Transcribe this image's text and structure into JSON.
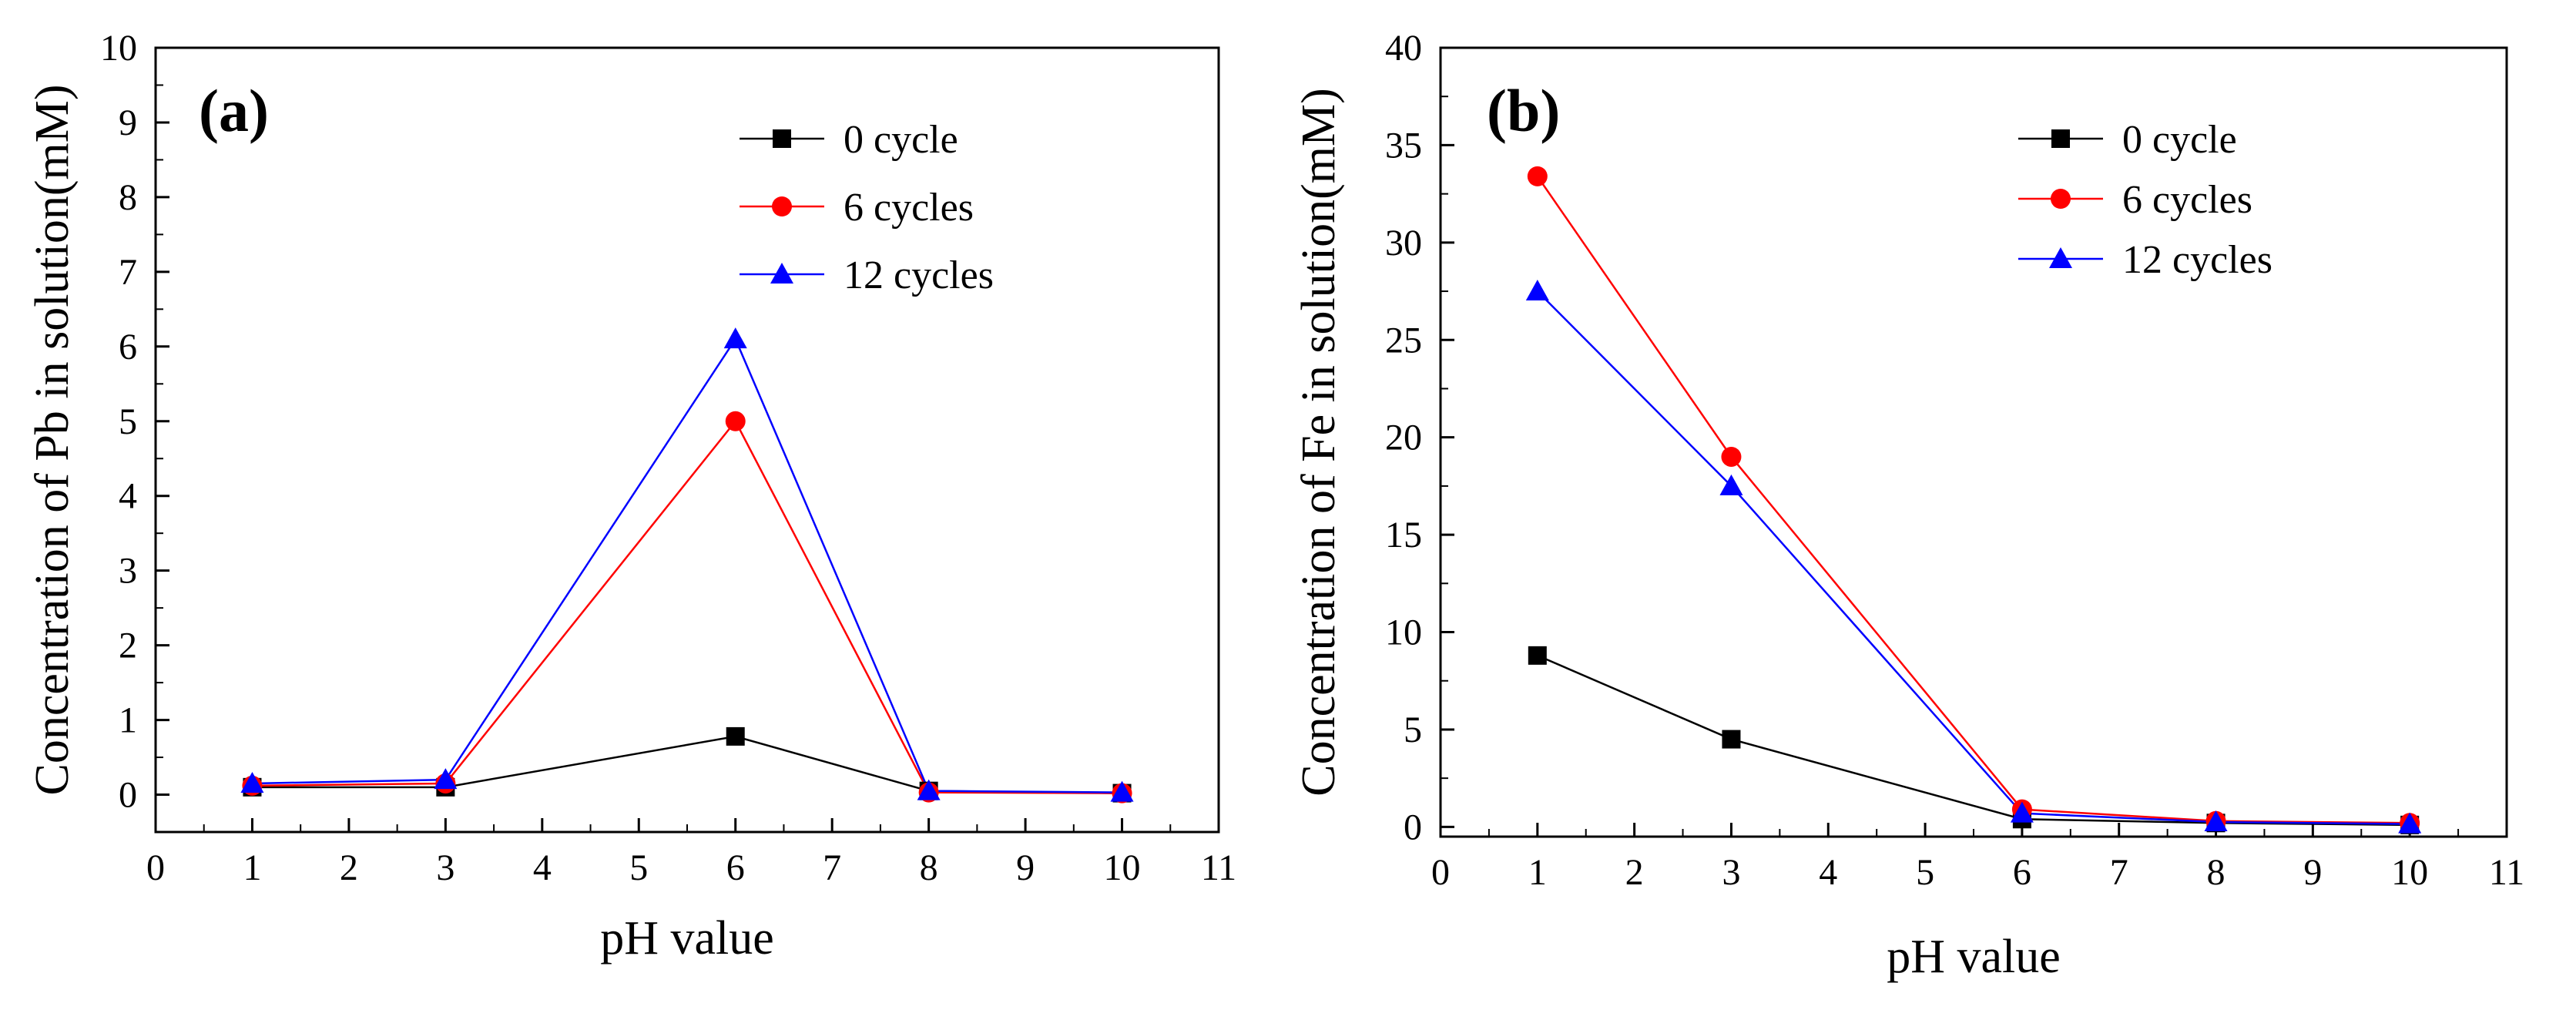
{
  "chart_data": [
    {
      "type": "line",
      "panel_label": "(a)",
      "xlabel": "pH value",
      "ylabel": "Concentration of Pb in solution(mM)",
      "xlim": [
        0,
        11
      ],
      "ylim": [
        -0.5,
        10
      ],
      "xticks": [
        0,
        1,
        2,
        3,
        4,
        5,
        6,
        7,
        8,
        9,
        10,
        11
      ],
      "yticks": [
        0,
        1,
        2,
        3,
        4,
        5,
        6,
        7,
        8,
        9,
        10
      ],
      "legend_position": "top-right",
      "x": [
        1,
        3,
        6,
        8,
        10
      ],
      "series": [
        {
          "name": "0 cycle",
          "color": "#000000",
          "marker": "square",
          "values": [
            0.1,
            0.1,
            0.78,
            0.05,
            0.02
          ]
        },
        {
          "name": "6 cycles",
          "color": "#ff0000",
          "marker": "circle",
          "values": [
            0.12,
            0.15,
            5.0,
            0.03,
            0.02
          ]
        },
        {
          "name": "12 cycles",
          "color": "#0000ff",
          "marker": "triangle",
          "values": [
            0.15,
            0.2,
            6.1,
            0.05,
            0.03
          ]
        }
      ]
    },
    {
      "type": "line",
      "panel_label": "(b)",
      "xlabel": "pH value",
      "ylabel": "Concentration of Fe in solution(mM)",
      "xlim": [
        0,
        11
      ],
      "ylim": [
        -0.5,
        40
      ],
      "xticks": [
        0,
        1,
        2,
        3,
        4,
        5,
        6,
        7,
        8,
        9,
        10,
        11
      ],
      "yticks": [
        0,
        5,
        10,
        15,
        20,
        25,
        30,
        35,
        40
      ],
      "legend_position": "top-right",
      "x": [
        1,
        3,
        6,
        8,
        10
      ],
      "series": [
        {
          "name": "0 cycle",
          "color": "#000000",
          "marker": "square",
          "values": [
            8.8,
            4.5,
            0.4,
            0.2,
            0.1
          ]
        },
        {
          "name": "6 cycles",
          "color": "#ff0000",
          "marker": "circle",
          "values": [
            33.4,
            19.0,
            0.9,
            0.3,
            0.2
          ]
        },
        {
          "name": "12 cycles",
          "color": "#0000ff",
          "marker": "triangle",
          "values": [
            27.5,
            17.5,
            0.7,
            0.25,
            0.15
          ]
        }
      ]
    }
  ]
}
